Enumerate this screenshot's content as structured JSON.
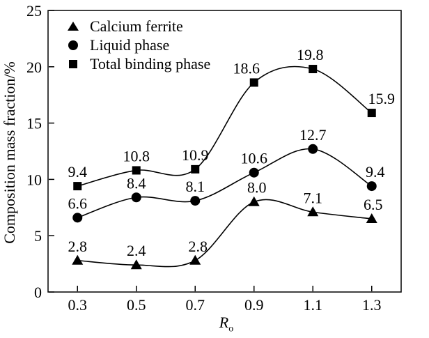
{
  "chart_data": {
    "type": "line",
    "x": [
      0.3,
      0.5,
      0.7,
      0.9,
      1.1,
      1.3
    ],
    "xticks": [
      "0.3",
      "0.5",
      "0.7",
      "0.9",
      "1.1",
      "1.3"
    ],
    "yticks": [
      0,
      5,
      10,
      15,
      20,
      25
    ],
    "xlim": [
      0.2,
      1.4
    ],
    "ylim": [
      0,
      25
    ],
    "xlabel": "R",
    "xlabel_sub": "o",
    "ylabel": "Composition mass fraction/%",
    "grid": false,
    "legend_position": "top-left-inside",
    "line_color": "#000000",
    "background_color": "#ffffff",
    "series": [
      {
        "name": "Calcium ferrite",
        "marker": "triangle",
        "values": [
          2.8,
          2.4,
          2.8,
          8.0,
          7.1,
          6.5
        ],
        "point_labels": [
          "2.8",
          "2.4",
          "2.8",
          "8.0",
          "7.1",
          "6.5"
        ],
        "label_dx": [
          0,
          0,
          4,
          4,
          0,
          2
        ]
      },
      {
        "name": "Liquid phase",
        "marker": "circle",
        "values": [
          6.6,
          8.4,
          8.1,
          10.6,
          12.7,
          9.4
        ],
        "point_labels": [
          "6.6",
          "8.4",
          "8.1",
          "10.6",
          "12.7",
          "9.4"
        ],
        "label_dx": [
          0,
          0,
          0,
          0,
          0,
          5
        ]
      },
      {
        "name": "Total binding phase",
        "marker": "square",
        "values": [
          9.4,
          10.8,
          10.9,
          18.6,
          19.8,
          15.9
        ],
        "point_labels": [
          "9.4",
          "10.8",
          "10.9",
          "18.6",
          "19.8",
          "15.9"
        ],
        "label_dx": [
          0,
          0,
          0,
          -11,
          -4,
          14
        ]
      }
    ]
  }
}
